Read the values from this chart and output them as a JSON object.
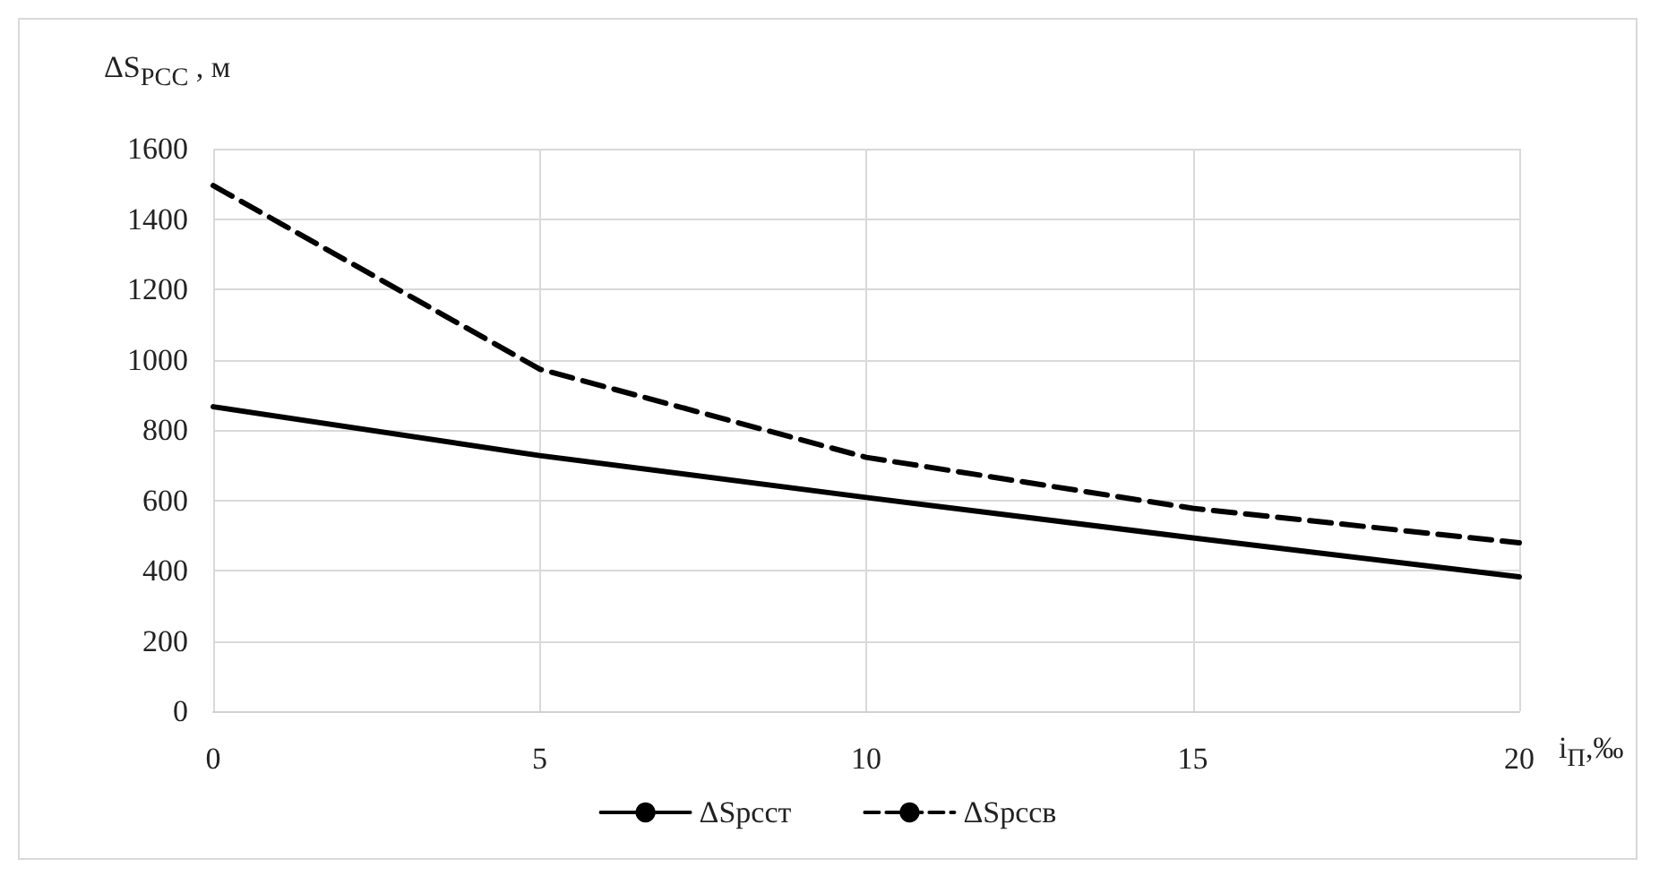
{
  "chart_data": {
    "type": "line",
    "xlabel": "i$_{П}$,‰",
    "ylabel": "ΔS$_{PCC}$ , м",
    "x": [
      0,
      5,
      10,
      15,
      20
    ],
    "series": [
      {
        "name": "ΔSpccт",
        "color": "#000000",
        "line_style": "solid",
        "values": [
          866,
          727,
          608,
          493,
          382
        ]
      },
      {
        "name": "ΔSpccв",
        "color": "#000000",
        "line_style": "dashed",
        "values": [
          1495,
          973,
          722,
          577,
          479
        ]
      }
    ],
    "xlim": [
      0,
      20
    ],
    "xticks": [
      0,
      5,
      10,
      15,
      20
    ],
    "ylim": [
      0,
      1600
    ],
    "yticks": [
      0,
      200,
      400,
      600,
      800,
      1000,
      1200,
      1400,
      1600
    ],
    "grid": true,
    "legend": "bottom",
    "marker": "none"
  }
}
